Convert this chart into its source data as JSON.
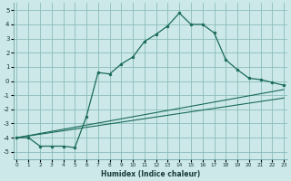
{
  "xlabel": "Humidex (Indice chaleur)",
  "bg_color": "#cce8e8",
  "grid_color": "#8bbcbc",
  "line_color": "#1a6b5a",
  "line1_x": [
    0,
    1,
    2,
    3,
    4,
    5,
    6,
    7,
    8,
    9,
    10,
    11,
    12,
    13,
    14,
    15,
    16,
    17,
    18,
    19,
    20,
    21,
    22,
    23
  ],
  "line1_y": [
    -4.0,
    -4.0,
    -4.6,
    -4.6,
    -4.6,
    -4.7,
    -2.5,
    0.6,
    0.5,
    1.2,
    1.7,
    2.8,
    3.3,
    3.9,
    4.8,
    4.0,
    4.0,
    3.4,
    1.5,
    0.8,
    0.2,
    0.1,
    -0.1,
    -0.3
  ],
  "line2_x": [
    0,
    23
  ],
  "line2_y": [
    -4.0,
    -0.6
  ],
  "line3_x": [
    0,
    23
  ],
  "line3_y": [
    -4.0,
    -1.2
  ],
  "xlim": [
    -0.3,
    23.3
  ],
  "ylim": [
    -5.5,
    5.5
  ],
  "yticks": [
    -5,
    -4,
    -3,
    -2,
    -1,
    0,
    1,
    2,
    3,
    4,
    5
  ],
  "xticks": [
    0,
    1,
    2,
    3,
    4,
    5,
    6,
    7,
    8,
    9,
    10,
    11,
    12,
    13,
    14,
    15,
    16,
    17,
    18,
    19,
    20,
    21,
    22,
    23
  ]
}
